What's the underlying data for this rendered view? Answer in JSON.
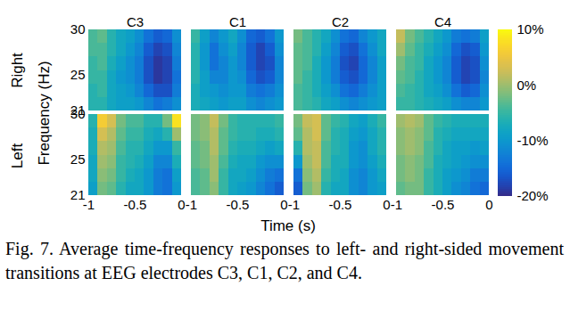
{
  "chart_data": {
    "type": "heatmap",
    "caption": "Fig. 7. Average time-frequency responses to left- and right-sided movement transitions at EEG electrodes C3, C1, C2, and C4.",
    "xlabel": "Time (s)",
    "ylabel": "Frequency (Hz)",
    "xlim": [
      -1,
      0
    ],
    "xticks": [
      -1,
      -0.5,
      0
    ],
    "ylim": [
      21,
      30
    ],
    "yticks": [
      21,
      25,
      30
    ],
    "electrodes": [
      "C3",
      "C1",
      "C2",
      "C4"
    ],
    "conditions": [
      "Right",
      "Left"
    ],
    "time_edges": [
      -1,
      -0.9,
      -0.8,
      -0.7,
      -0.6,
      -0.5,
      -0.4,
      -0.3,
      -0.2,
      -0.1,
      0
    ],
    "freq_edges": [
      21,
      22.5,
      24,
      25.5,
      27,
      28.5,
      30
    ],
    "panels": [
      {
        "condition": "Right",
        "electrode": "C3",
        "values": [
          [
            -6,
            -6,
            -8,
            -9,
            -9,
            -10,
            -12,
            -14,
            -13,
            -11
          ],
          [
            -6,
            -5,
            -8,
            -9,
            -10,
            -12,
            -15,
            -17,
            -17,
            -13
          ],
          [
            -5,
            -5,
            -8,
            -10,
            -11,
            -13,
            -17,
            -19,
            -18,
            -14
          ],
          [
            -5,
            -4,
            -7,
            -9,
            -11,
            -13,
            -17,
            -19,
            -18,
            -13
          ],
          [
            -4,
            -4,
            -6,
            -8,
            -10,
            -12,
            -16,
            -18,
            -17,
            -12
          ],
          [
            -4,
            -3,
            -6,
            -8,
            -9,
            -11,
            -14,
            -16,
            -15,
            -11
          ]
        ]
      },
      {
        "condition": "Right",
        "electrode": "C1",
        "values": [
          [
            -7,
            -8,
            -9,
            -10,
            -9,
            -9,
            -11,
            -12,
            -11,
            -10
          ],
          [
            -7,
            -9,
            -10,
            -11,
            -10,
            -10,
            -13,
            -14,
            -13,
            -11
          ],
          [
            -6,
            -9,
            -12,
            -12,
            -10,
            -11,
            -15,
            -17,
            -16,
            -12
          ],
          [
            -6,
            -10,
            -14,
            -12,
            -10,
            -12,
            -16,
            -18,
            -17,
            -12
          ],
          [
            -6,
            -10,
            -14,
            -11,
            -9,
            -12,
            -16,
            -18,
            -16,
            -11
          ],
          [
            -5,
            -9,
            -12,
            -10,
            -8,
            -11,
            -15,
            -16,
            -14,
            -10
          ]
        ]
      },
      {
        "condition": "Right",
        "electrode": "C2",
        "values": [
          [
            -4,
            -5,
            -6,
            -8,
            -9,
            -11,
            -12,
            -11,
            -10,
            -9
          ],
          [
            -4,
            -5,
            -7,
            -9,
            -11,
            -14,
            -15,
            -13,
            -11,
            -9
          ],
          [
            -3,
            -5,
            -7,
            -10,
            -13,
            -16,
            -17,
            -15,
            -12,
            -9
          ],
          [
            -3,
            -4,
            -7,
            -10,
            -13,
            -17,
            -18,
            -15,
            -12,
            -9
          ],
          [
            -3,
            -4,
            -6,
            -9,
            -12,
            -16,
            -17,
            -14,
            -11,
            -8
          ],
          [
            -2,
            -4,
            -6,
            -8,
            -11,
            -14,
            -15,
            -12,
            -10,
            -8
          ]
        ]
      },
      {
        "condition": "Right",
        "electrode": "C4",
        "values": [
          [
            -5,
            -5,
            -6,
            -7,
            -8,
            -9,
            -11,
            -12,
            -12,
            -10
          ],
          [
            -4,
            -5,
            -6,
            -8,
            -9,
            -11,
            -14,
            -16,
            -15,
            -11
          ],
          [
            -3,
            -4,
            -6,
            -8,
            -10,
            -12,
            -16,
            -18,
            -17,
            -12
          ],
          [
            -2,
            -4,
            -5,
            -8,
            -10,
            -12,
            -16,
            -18,
            -17,
            -11
          ],
          [
            0,
            -3,
            -5,
            -7,
            -9,
            -11,
            -15,
            -17,
            -16,
            -10
          ],
          [
            2,
            -2,
            -4,
            -6,
            -8,
            -10,
            -13,
            -14,
            -13,
            -9
          ]
        ]
      },
      {
        "condition": "Left",
        "electrode": "C3",
        "values": [
          [
            -9,
            -2,
            -3,
            -6,
            -8,
            -8,
            -10,
            -13,
            -14,
            -10
          ],
          [
            -8,
            -1,
            -2,
            -5,
            -7,
            -8,
            -10,
            -13,
            -14,
            -9
          ],
          [
            -8,
            0,
            -1,
            -5,
            -6,
            -7,
            -9,
            -12,
            -12,
            -7
          ],
          [
            -7,
            1,
            0,
            -4,
            -6,
            -6,
            -8,
            -10,
            -10,
            -5
          ],
          [
            -7,
            3,
            1,
            -3,
            -5,
            -5,
            -7,
            -8,
            -6,
            0
          ],
          [
            -6,
            6,
            3,
            -2,
            -4,
            -4,
            -6,
            -6,
            -2,
            8
          ]
        ]
      },
      {
        "condition": "Left",
        "electrode": "C1",
        "values": [
          [
            -4,
            -3,
            -1,
            -5,
            -8,
            -9,
            -10,
            -12,
            -14,
            -16
          ],
          [
            -4,
            -3,
            0,
            -5,
            -8,
            -8,
            -9,
            -11,
            -13,
            -14
          ],
          [
            -3,
            -2,
            0,
            -4,
            -7,
            -8,
            -8,
            -10,
            -11,
            -11
          ],
          [
            -3,
            -2,
            1,
            -3,
            -6,
            -7,
            -7,
            -8,
            -9,
            -8
          ],
          [
            -2,
            -1,
            1,
            -3,
            -5,
            -6,
            -6,
            -7,
            -7,
            -6
          ],
          [
            -2,
            -1,
            2,
            -2,
            -5,
            -6,
            -6,
            -6,
            -6,
            -5
          ]
        ]
      },
      {
        "condition": "Left",
        "electrode": "C2",
        "values": [
          [
            -16,
            -2,
            0,
            -6,
            -8,
            -8,
            -11,
            -12,
            -10,
            -9
          ],
          [
            -14,
            -1,
            1,
            -5,
            -7,
            -8,
            -11,
            -12,
            -10,
            -8
          ],
          [
            -10,
            0,
            2,
            -4,
            -7,
            -7,
            -10,
            -11,
            -9,
            -7
          ],
          [
            -6,
            1,
            2,
            -4,
            -6,
            -7,
            -10,
            -11,
            -8,
            -6
          ],
          [
            -3,
            1,
            3,
            -3,
            -6,
            -7,
            -9,
            -10,
            -8,
            -6
          ],
          [
            -2,
            2,
            3,
            -3,
            -5,
            -6,
            -8,
            -9,
            -7,
            -5
          ]
        ]
      },
      {
        "condition": "Left",
        "electrode": "C4",
        "values": [
          [
            -3,
            -2,
            -2,
            -5,
            -7,
            -9,
            -11,
            -12,
            -14,
            -15
          ],
          [
            -2,
            -1,
            -2,
            -5,
            -7,
            -9,
            -10,
            -11,
            -13,
            -13
          ],
          [
            -2,
            -1,
            -2,
            -4,
            -7,
            -8,
            -9,
            -10,
            -11,
            -11
          ],
          [
            -1,
            0,
            -1,
            -4,
            -6,
            -8,
            -9,
            -9,
            -10,
            -9
          ],
          [
            -1,
            0,
            -1,
            -3,
            -6,
            -7,
            -8,
            -8,
            -8,
            -8
          ],
          [
            0,
            1,
            0,
            -3,
            -5,
            -6,
            -7,
            -7,
            -7,
            -7
          ]
        ]
      }
    ],
    "colorbar": {
      "range": [
        -20,
        10
      ],
      "ticks": [
        {
          "value": -20,
          "label": "-20%"
        },
        {
          "value": -10,
          "label": "-10%"
        },
        {
          "value": 0,
          "label": "0%"
        },
        {
          "value": 10,
          "label": "10%"
        }
      ]
    }
  }
}
